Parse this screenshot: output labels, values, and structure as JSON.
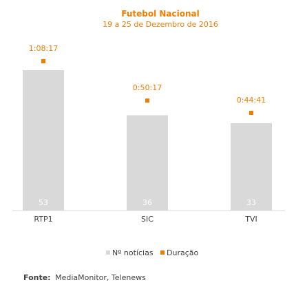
{
  "chart_data": {
    "type": "bar",
    "title": "Futebol Nacional",
    "subtitle": "19 a 25 de Dezembro de 2016",
    "categories": [
      "RTP1",
      "SIC",
      "TVI"
    ],
    "series": [
      {
        "name": "Nº notícias",
        "type": "bar",
        "values": [
          53,
          36,
          33
        ],
        "color": "#d9d9d9"
      },
      {
        "name": "Duração",
        "type": "scatter",
        "values": [
          "1:08:17",
          "0:50:17",
          "0:44:41"
        ],
        "seconds": [
          4097,
          3017,
          2681
        ],
        "color": "#f07c00"
      }
    ],
    "legend": "bottom-center",
    "grid": false,
    "source_label": "Fonte:",
    "source_text": "MediaMonitor, Telenews"
  },
  "colors": {
    "accent": "#f07c00",
    "bar": "#d9d9d9",
    "text": "#404040",
    "bar_label": "#ffffff"
  }
}
